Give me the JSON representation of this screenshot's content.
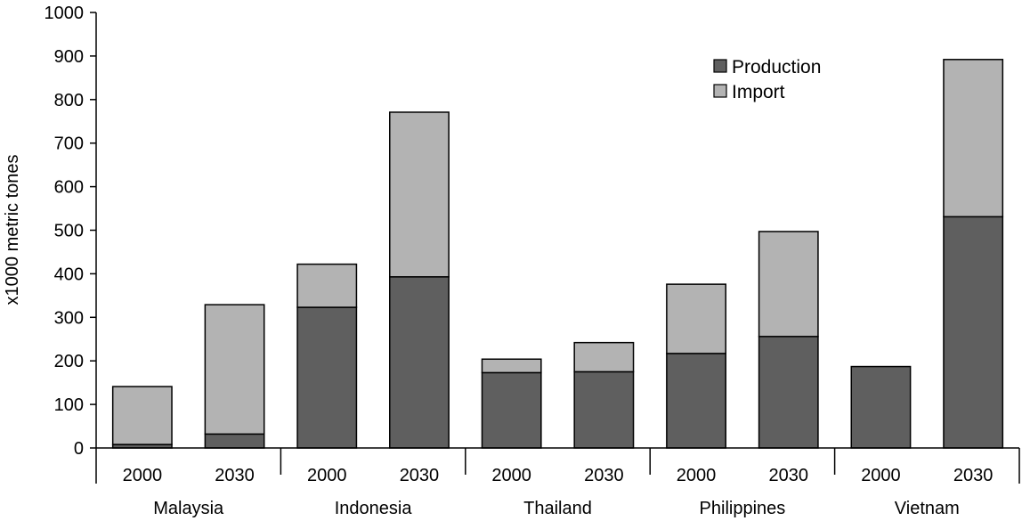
{
  "chart_data": {
    "type": "bar",
    "stacked": true,
    "title": "",
    "ylabel": "x1000 metric tones",
    "xlabel": "",
    "ylim": [
      0,
      1000
    ],
    "yticks": [
      "0",
      "100",
      "200",
      "300",
      "400",
      "500",
      "600",
      "700",
      "800",
      "900",
      "1000"
    ],
    "grid": false,
    "legend_position": "top-right",
    "groups": [
      "Malaysia",
      "Indonesia",
      "Thailand",
      "Philippines",
      "Vietnam"
    ],
    "categories": [
      "2000",
      "2030",
      "2000",
      "2030",
      "2000",
      "2030",
      "2000",
      "2030",
      "2000",
      "2030"
    ],
    "series": [
      {
        "name": "Production",
        "color": "#5f5f5f",
        "values": [
          8,
          32,
          323,
          393,
          173,
          175,
          217,
          256,
          187,
          531
        ]
      },
      {
        "name": "Import",
        "color": "#b3b3b3",
        "values": [
          133,
          297,
          99,
          378,
          31,
          67,
          159,
          241,
          0,
          361
        ]
      }
    ]
  }
}
